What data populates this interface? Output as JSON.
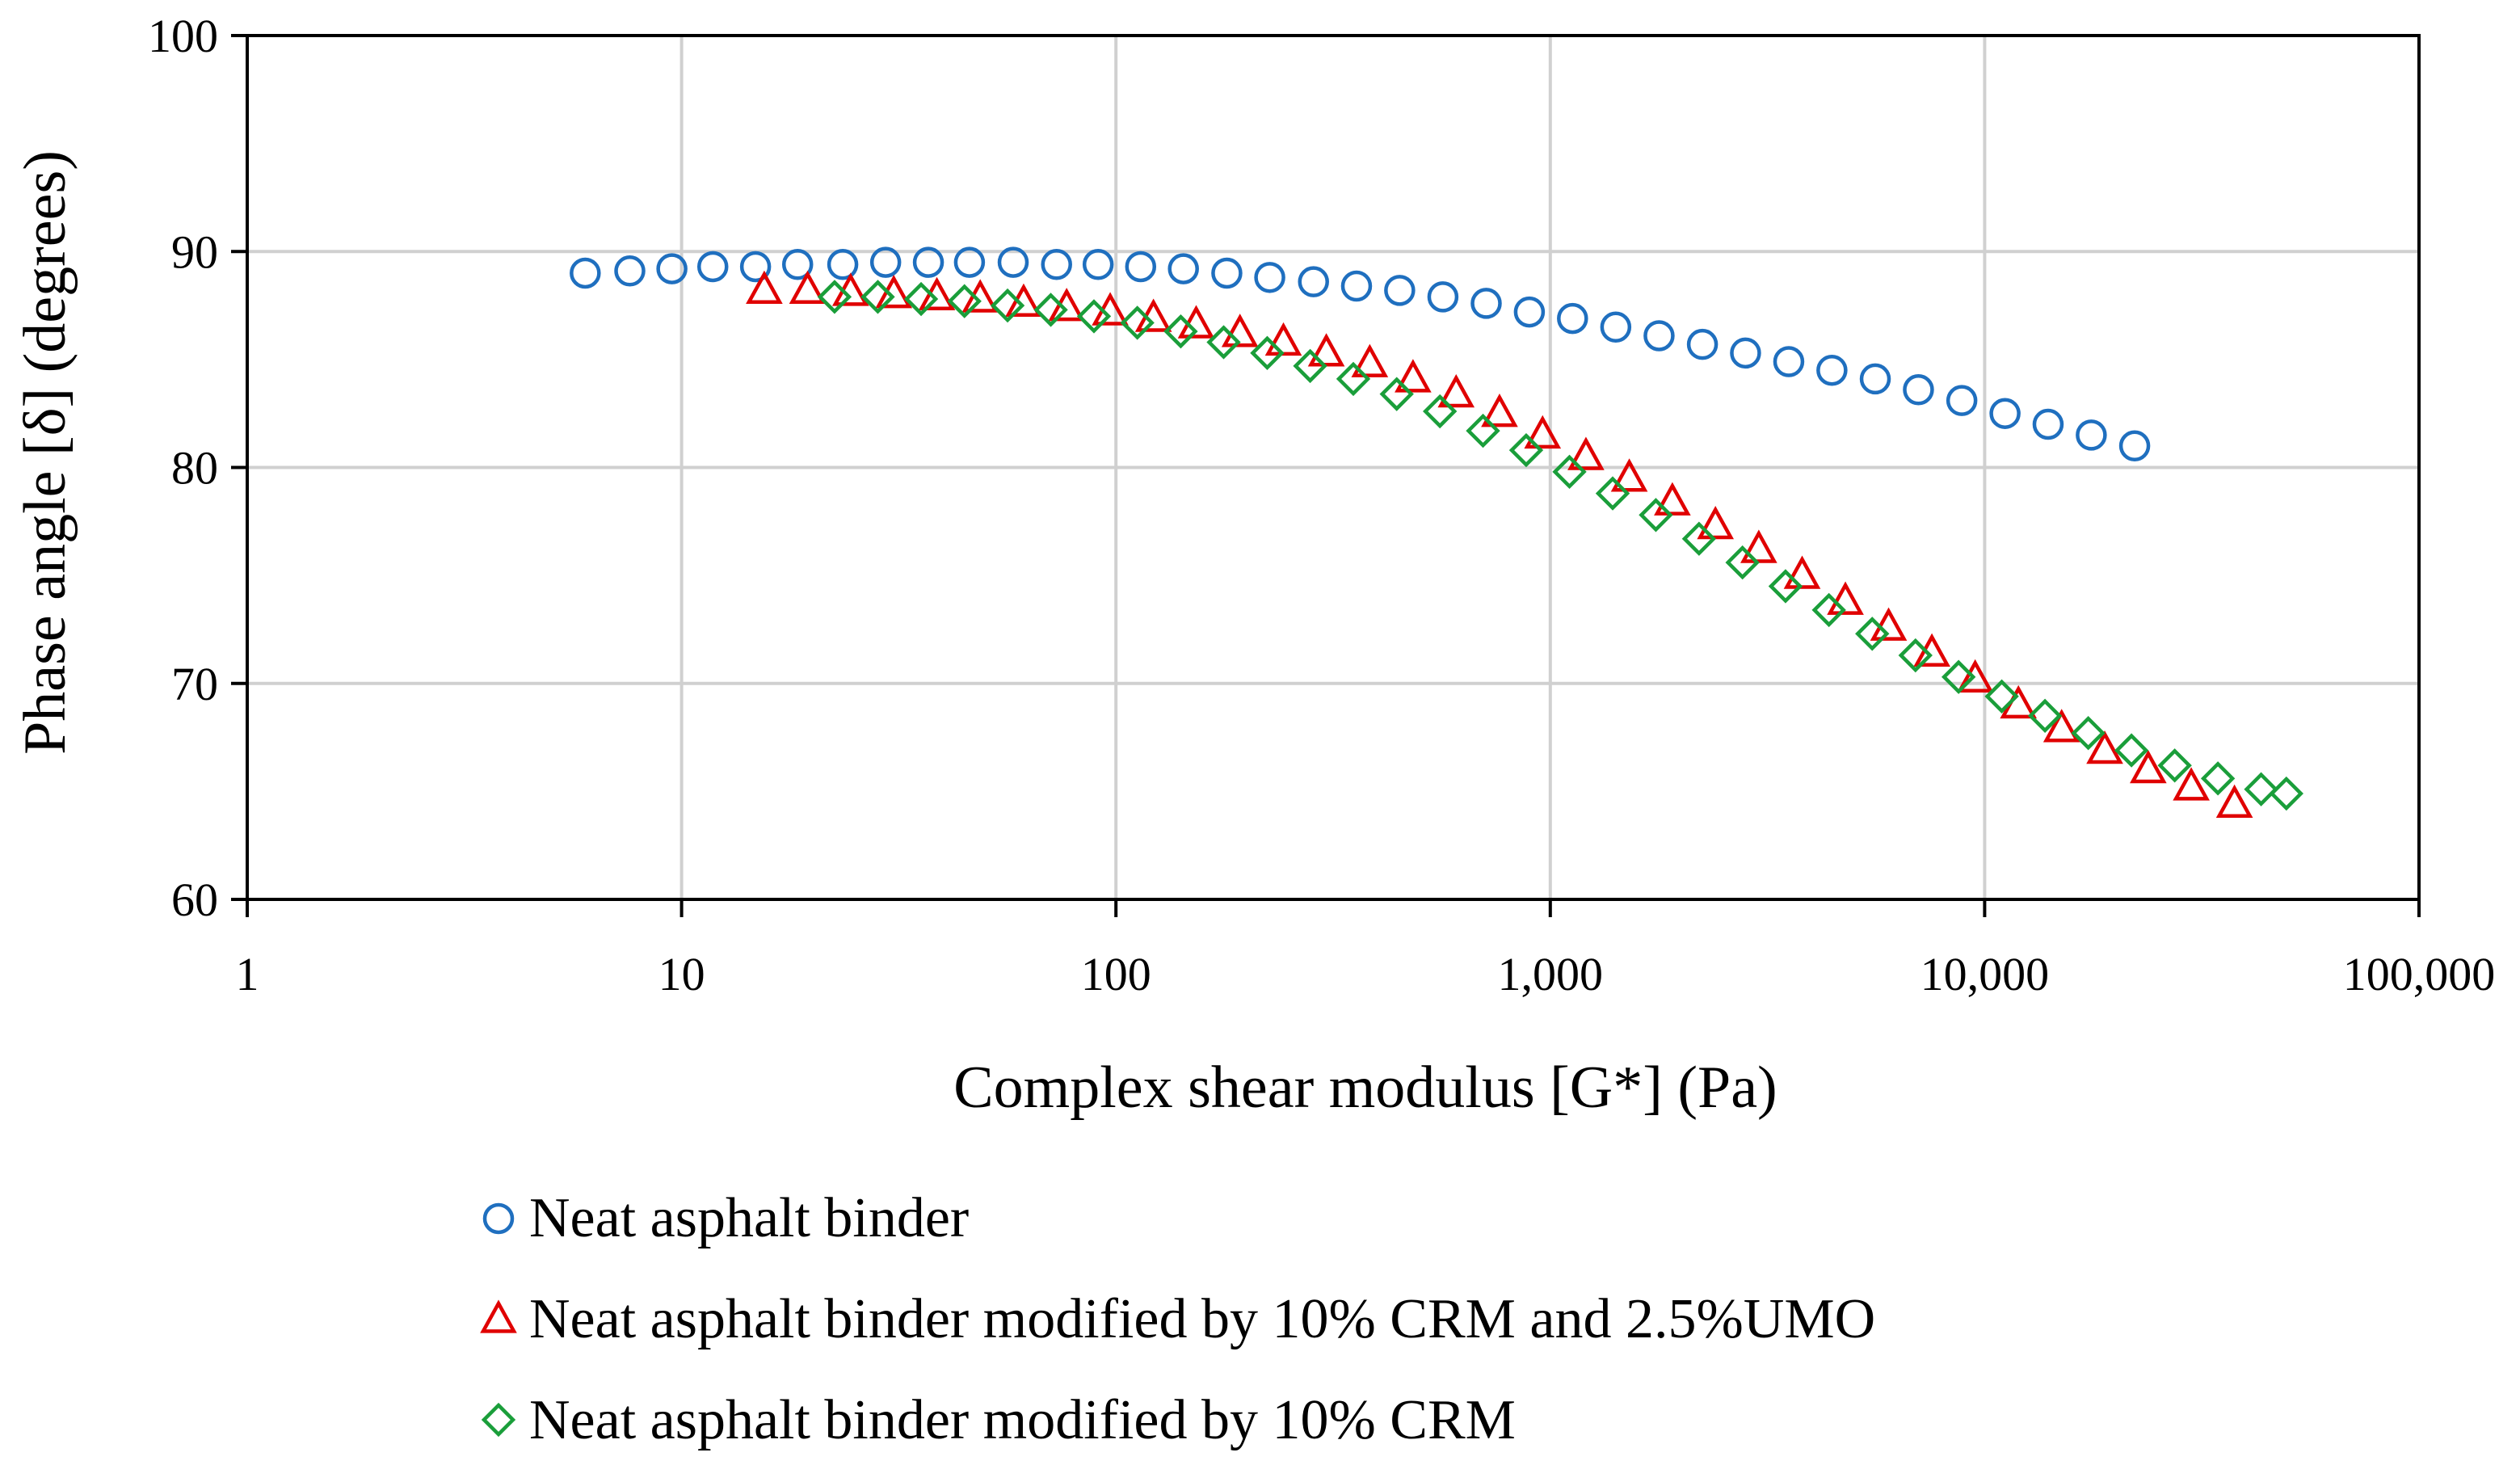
{
  "chart_data": {
    "type": "scatter",
    "title": "",
    "xlabel": "Complex shear modulus [G*] (Pa)",
    "ylabel": "Phase angle [δ] (degrees)",
    "xscale": "log",
    "xlim": [
      1,
      100000
    ],
    "ylim": [
      60,
      100
    ],
    "x_ticks": [
      1,
      10,
      100,
      1000,
      10000,
      100000
    ],
    "x_tick_labels": [
      "1",
      "10",
      "100",
      "1,000",
      "10,000",
      "100,000"
    ],
    "y_ticks": [
      60,
      70,
      80,
      90,
      100
    ],
    "y_tick_labels": [
      "60",
      "70",
      "80",
      "90",
      "100"
    ],
    "grid": true,
    "legend_position": "bottom",
    "series": [
      {
        "name": "Neat asphalt binder",
        "marker": "circle",
        "color": "#1f6fbf",
        "points": [
          [
            6,
            89.0
          ],
          [
            7.6,
            89.1
          ],
          [
            9.5,
            89.2
          ],
          [
            11.8,
            89.3
          ],
          [
            14.8,
            89.3
          ],
          [
            18.5,
            89.4
          ],
          [
            23.5,
            89.4
          ],
          [
            29.5,
            89.5
          ],
          [
            37,
            89.5
          ],
          [
            46,
            89.5
          ],
          [
            58,
            89.5
          ],
          [
            73,
            89.4
          ],
          [
            91,
            89.4
          ],
          [
            114,
            89.3
          ],
          [
            143,
            89.2
          ],
          [
            180,
            89.0
          ],
          [
            226,
            88.8
          ],
          [
            285,
            88.6
          ],
          [
            358,
            88.4
          ],
          [
            450,
            88.2
          ],
          [
            566,
            87.9
          ],
          [
            712,
            87.6
          ],
          [
            895,
            87.2
          ],
          [
            1125,
            86.9
          ],
          [
            1415,
            86.5
          ],
          [
            1780,
            86.1
          ],
          [
            2240,
            85.7
          ],
          [
            2815,
            85.3
          ],
          [
            3540,
            84.9
          ],
          [
            4450,
            84.5
          ],
          [
            5600,
            84.1
          ],
          [
            7040,
            83.6
          ],
          [
            8860,
            83.1
          ],
          [
            11140,
            82.5
          ],
          [
            14000,
            82.0
          ],
          [
            17600,
            81.5
          ],
          [
            22150,
            81.0
          ]
        ]
      },
      {
        "name": "Neat asphalt binder modified by 10% CRM and 2.5%UMO",
        "marker": "triangle",
        "color": "#e00000",
        "points": [
          [
            15.5,
            88.2
          ],
          [
            19.5,
            88.2
          ],
          [
            24.5,
            88.1
          ],
          [
            30.8,
            88.0
          ],
          [
            38.7,
            87.9
          ],
          [
            48.7,
            87.8
          ],
          [
            61.3,
            87.6
          ],
          [
            77,
            87.4
          ],
          [
            97,
            87.2
          ],
          [
            122,
            86.9
          ],
          [
            153,
            86.6
          ],
          [
            193,
            86.2
          ],
          [
            243,
            85.8
          ],
          [
            305,
            85.3
          ],
          [
            384,
            84.8
          ],
          [
            483,
            84.1
          ],
          [
            607,
            83.4
          ],
          [
            764,
            82.5
          ],
          [
            960,
            81.5
          ],
          [
            1208,
            80.5
          ],
          [
            1520,
            79.5
          ],
          [
            1910,
            78.4
          ],
          [
            2400,
            77.3
          ],
          [
            3020,
            76.2
          ],
          [
            3800,
            75.0
          ],
          [
            4780,
            73.8
          ],
          [
            6010,
            72.6
          ],
          [
            7560,
            71.4
          ],
          [
            9510,
            70.2
          ],
          [
            11960,
            69.0
          ],
          [
            15040,
            67.9
          ],
          [
            18900,
            66.9
          ],
          [
            23800,
            66.0
          ],
          [
            29900,
            65.2
          ],
          [
            37600,
            64.4
          ]
        ]
      },
      {
        "name": "Neat asphalt binder modified by 10% CRM",
        "marker": "diamond",
        "color": "#1a9e3a",
        "points": [
          [
            22.5,
            87.9
          ],
          [
            28.3,
            87.9
          ],
          [
            35.6,
            87.8
          ],
          [
            44.8,
            87.7
          ],
          [
            56.3,
            87.5
          ],
          [
            70.8,
            87.3
          ],
          [
            89,
            87.0
          ],
          [
            112,
            86.7
          ],
          [
            141,
            86.3
          ],
          [
            177,
            85.8
          ],
          [
            223,
            85.3
          ],
          [
            280,
            84.7
          ],
          [
            352,
            84.1
          ],
          [
            443,
            83.4
          ],
          [
            557,
            82.6
          ],
          [
            700,
            81.7
          ],
          [
            880,
            80.8
          ],
          [
            1107,
            79.8
          ],
          [
            1392,
            78.8
          ],
          [
            1750,
            77.8
          ],
          [
            2200,
            76.7
          ],
          [
            2770,
            75.6
          ],
          [
            3480,
            74.5
          ],
          [
            4380,
            73.4
          ],
          [
            5510,
            72.3
          ],
          [
            6930,
            71.3
          ],
          [
            8710,
            70.3
          ],
          [
            10950,
            69.4
          ],
          [
            13770,
            68.5
          ],
          [
            17320,
            67.7
          ],
          [
            21780,
            66.9
          ],
          [
            27390,
            66.2
          ],
          [
            34440,
            65.6
          ],
          [
            43300,
            65.1
          ],
          [
            49500,
            64.9
          ]
        ]
      }
    ]
  }
}
